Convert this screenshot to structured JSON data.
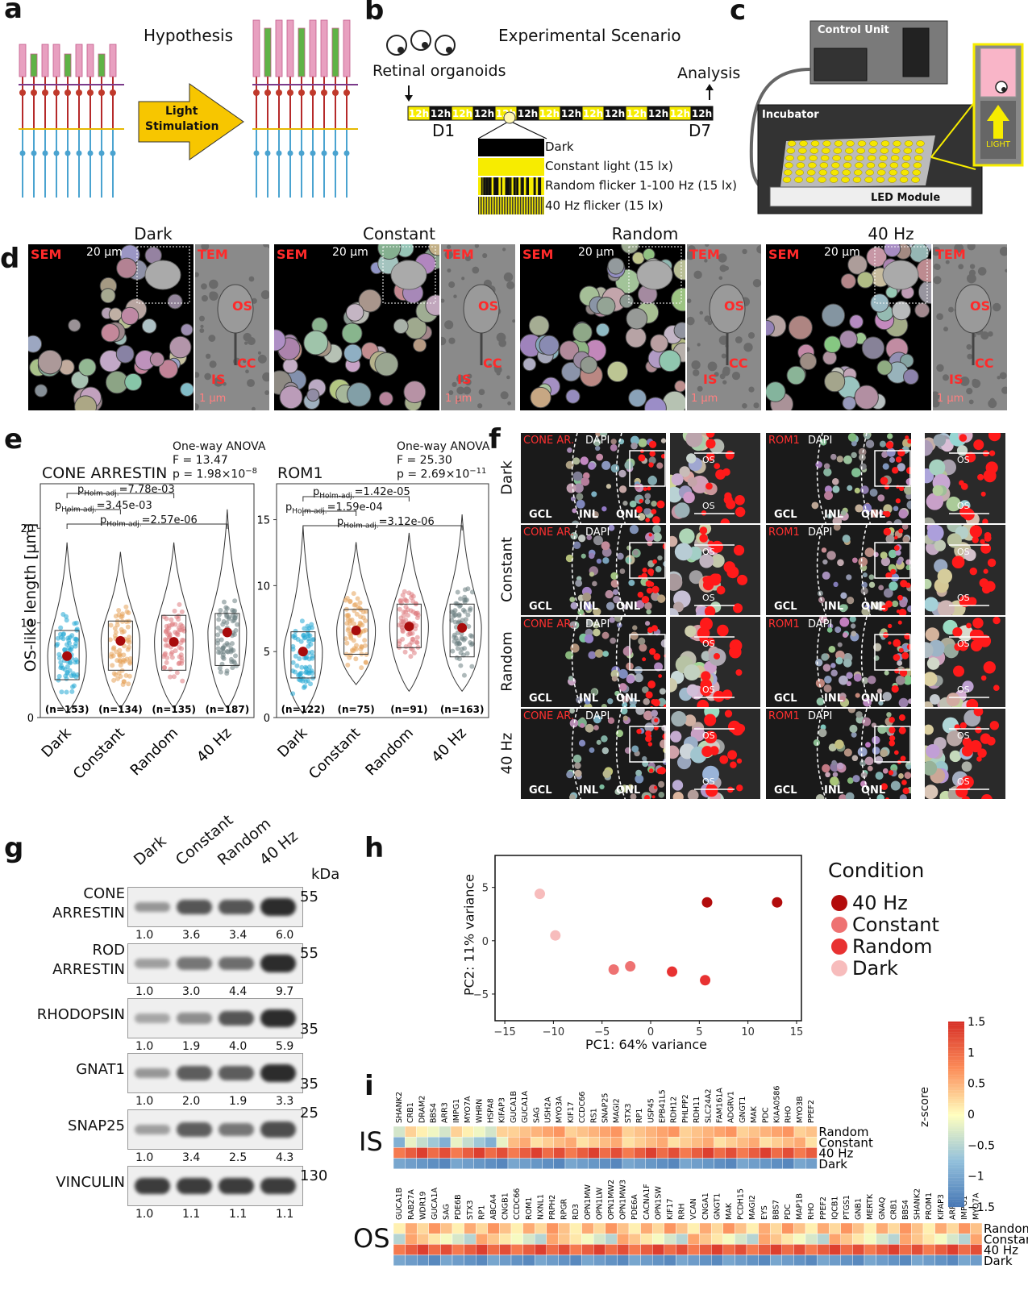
{
  "panels": {
    "a": {
      "label": "a",
      "hypothesis": "Hypothesis",
      "arrow_text_1": "Light",
      "arrow_text_2": "Stimulation"
    },
    "b": {
      "label": "b",
      "title": "Experimental Scenario",
      "organoids": "Retinal organoids",
      "analysis": "Analysis",
      "timeline": [
        "12h",
        "12h",
        "12h",
        "12h",
        "12h",
        "12h",
        "12h",
        "12h",
        "12h",
        "12h",
        "12h",
        "12h",
        "12h",
        "12h"
      ],
      "d1": "D1",
      "d7": "D7",
      "legend": [
        "Dark",
        "Constant light (15 lx)",
        "Random flicker 1-100 Hz (15 lx)",
        "40 Hz flicker (15 lx)"
      ]
    },
    "c": {
      "label": "c",
      "control_unit": "Control Unit",
      "incubator": "Incubator",
      "led_module": "LED Module",
      "light": "LIGHT"
    },
    "d": {
      "label": "d",
      "conditions": [
        "Dark",
        "Constant",
        "Random",
        "40 Hz"
      ],
      "sem": "SEM",
      "tem": "TEM",
      "scale_sem": "20 µm",
      "scale_tem": "1 µm",
      "os": "OS",
      "cc": "CC",
      "is": "IS"
    },
    "e": {
      "label": "e",
      "ylabel": "OS-like length [µm]",
      "left": {
        "title": "CONE ARRESTIN",
        "anova": "One-way ANOVA",
        "F": "F = 13.47",
        "p": "p = 1.98×10",
        "p_exp": "−8",
        "comparisons": [
          "=7.78e-03",
          "=3.45e-03",
          "=2.57e-06"
        ],
        "n": [
          "(n=153)",
          "(n=134)",
          "(n=135)",
          "(n=187)"
        ],
        "yticks": [
          "0",
          "10",
          "20"
        ]
      },
      "right": {
        "title": "ROM1",
        "anova": "One-way ANOVA",
        "F": "F = 25.30",
        "p": "p = 2.69×10",
        "p_exp": "−11",
        "comparisons": [
          "=1.42e-05",
          "=1.59e-04",
          "=3.12e-06"
        ],
        "n": [
          "(n=122)",
          "(n=75)",
          "(n=91)",
          "(n=163)"
        ],
        "yticks": [
          "0",
          "5",
          "10",
          "15"
        ]
      },
      "p_prefix": "p",
      "p_sub": "Holm-adj.",
      "xcats": [
        "Dark",
        "Constant",
        "Random",
        "40 Hz"
      ]
    },
    "f": {
      "label": "f",
      "rows": [
        "Dark",
        "Constant",
        "Random",
        "40 Hz"
      ],
      "stain_a": "CONE AR.",
      "stain_b": "ROM1",
      "dapi": "DAPI",
      "gcl": "GCL",
      "inl": "INL",
      "onl": "ONL",
      "os": "OS"
    },
    "g": {
      "label": "g",
      "lanes": [
        "Dark",
        "Constant",
        "Random",
        "40 Hz"
      ],
      "kda": "kDa",
      "blots": [
        {
          "name1": "CONE",
          "name2": "ARRESTIN",
          "marker": "55",
          "vals": [
            "1.0",
            "3.6",
            "3.4",
            "6.0"
          ]
        },
        {
          "name1": "ROD",
          "name2": "ARRESTIN",
          "marker": "55",
          "vals": [
            "1.0",
            "3.0",
            "4.4",
            "9.7"
          ]
        },
        {
          "name1": "RHODOPSIN",
          "name2": "",
          "marker": "35",
          "vals": [
            "1.0",
            "1.9",
            "4.0",
            "5.9"
          ]
        },
        {
          "name1": "GNAT1",
          "name2": "",
          "marker": "35",
          "vals": [
            "1.0",
            "2.0",
            "1.9",
            "3.3"
          ]
        },
        {
          "name1": "SNAP25",
          "name2": "",
          "marker": "25",
          "vals": [
            "1.0",
            "3.4",
            "2.5",
            "4.3"
          ]
        },
        {
          "name1": "VINCULIN",
          "name2": "",
          "marker": "130",
          "vals": [
            "1.0",
            "1.1",
            "1.1",
            "1.1"
          ]
        }
      ]
    },
    "h": {
      "label": "h",
      "xlabel": "PC1: 64% variance",
      "ylabel": "PC2: 11% variance",
      "legend_title": "Condition",
      "legend": [
        "40 Hz",
        "Constant",
        "Random",
        "Dark"
      ]
    },
    "i": {
      "label": "i",
      "is": "IS",
      "os": "OS",
      "zlabel": "z-score",
      "rows": [
        "Random",
        "Constant",
        "40 Hz",
        "Dark"
      ],
      "cbar_ticks": [
        "1.5",
        "1",
        "0.5",
        "0",
        "−0.5",
        "−1",
        "−1.5"
      ],
      "is_genes": [
        "SHANK2",
        "CRB1",
        "DRAM2",
        "BBS4",
        "ARR3",
        "IMPG1",
        "MYO7A",
        "WHRN",
        "HSPA8",
        "KIFAP3",
        "GUCA1B",
        "GUCA1A",
        "SAG",
        "USH2A",
        "MYO3A",
        "KIF17",
        "CCDC66",
        "RS1",
        "SNAP25",
        "MAGI2",
        "STX3",
        "RP1",
        "USP45",
        "EPB41L5",
        "RDH12",
        "PHLPP2",
        "RDH11",
        "SLC24A2",
        "FAM161A",
        "ADGRV1",
        "GNGT1",
        "MAK",
        "PDC",
        "KIAA0586",
        "RHO",
        "MYO3B",
        "PPEF2"
      ],
      "os_genes": [
        "GUCA1B",
        "RAB27A",
        "WDR19",
        "GUCA1A",
        "SAG",
        "PDE6B",
        "STX3",
        "RP1",
        "ABCA4",
        "CNGB1",
        "CCDC66",
        "ROM1",
        "NXNL1",
        "PRPH2",
        "RPGR",
        "RD3",
        "OPN1MW",
        "OPN1LW",
        "OPN1MW2",
        "OPN1MW3",
        "PDE6A",
        "CACNA1F",
        "OPN1SW",
        "KIF17",
        "RRH",
        "VCAN",
        "CNGA1",
        "GNGT1",
        "MAK",
        "PCDH15",
        "MAGI2",
        "EYS",
        "BBS7",
        "PDC",
        "MAP1B",
        "RHO",
        "PPEF2",
        "IQCB1",
        "PTGS1",
        "GNB1",
        "MERTK",
        "GNAQ",
        "CRB1",
        "BBS4",
        "SHANK2",
        "PROM1",
        "KIFAP3",
        "ARR3",
        "IMPG1",
        "MYO7A"
      ]
    }
  },
  "chart_data": [
    {
      "type": "scatter",
      "panel": "h",
      "xlabel": "PC1: 64% variance",
      "ylabel": "PC2: 11% variance",
      "xlim": [
        -16,
        15.5
      ],
      "ylim": [
        -7.5,
        8
      ],
      "xticks": [
        -15,
        -10,
        -5,
        0,
        5,
        10,
        15
      ],
      "yticks": [
        -5,
        0,
        5
      ],
      "legend_title": "Condition",
      "series": [
        {
          "name": "40 Hz",
          "color": "#b30c0c",
          "x": [
            5.8,
            13.0
          ],
          "y": [
            3.6,
            3.6
          ]
        },
        {
          "name": "Constant",
          "color": "#ee7272",
          "x": [
            -3.8,
            -2.1
          ],
          "y": [
            -2.7,
            -2.4
          ]
        },
        {
          "name": "Random",
          "color": "#e83232",
          "x": [
            2.2,
            5.6
          ],
          "y": [
            -2.9,
            -3.7
          ]
        },
        {
          "name": "Dark",
          "color": "#f7bcbc",
          "x": [
            -11.4,
            -9.8
          ],
          "y": [
            4.4,
            0.5
          ]
        }
      ]
    },
    {
      "type": "violin",
      "panel": "e-left",
      "title": "CONE ARRESTIN",
      "ylabel": "OS-like length [µm]",
      "ylim": [
        0,
        23
      ],
      "categories": [
        "Dark",
        "Constant",
        "Random",
        "40 Hz"
      ],
      "means": [
        6.5,
        8.1,
        8.0,
        9.0
      ],
      "q1": [
        4.0,
        5.0,
        5.0,
        5.5
      ],
      "q3": [
        9.2,
        10.2,
        10.8,
        11.0
      ],
      "min": [
        0.5,
        1.0,
        1.0,
        1.0
      ],
      "max": [
        18.5,
        17.5,
        18.5,
        22.0
      ],
      "n": [
        153,
        134,
        135,
        187
      ],
      "colors": [
        "#22a7d4",
        "#e6a25a",
        "#df7b7f",
        "#6c7f82"
      ]
    },
    {
      "type": "violin",
      "panel": "e-right",
      "title": "ROM1",
      "ylim": [
        0,
        16.5
      ],
      "categories": [
        "Dark",
        "Constant",
        "Random",
        "40 Hz"
      ],
      "means": [
        5.0,
        6.6,
        6.9,
        6.8
      ],
      "q1": [
        3.0,
        4.8,
        5.3,
        4.6
      ],
      "q3": [
        6.5,
        8.2,
        8.6,
        8.6
      ],
      "min": [
        0.3,
        2.5,
        2.0,
        2.0
      ],
      "max": [
        14.5,
        13.3,
        14.0,
        15.4
      ],
      "n": [
        122,
        75,
        91,
        163
      ],
      "colors": [
        "#22a7d4",
        "#e6a25a",
        "#df7b7f",
        "#6c7f82"
      ]
    }
  ]
}
